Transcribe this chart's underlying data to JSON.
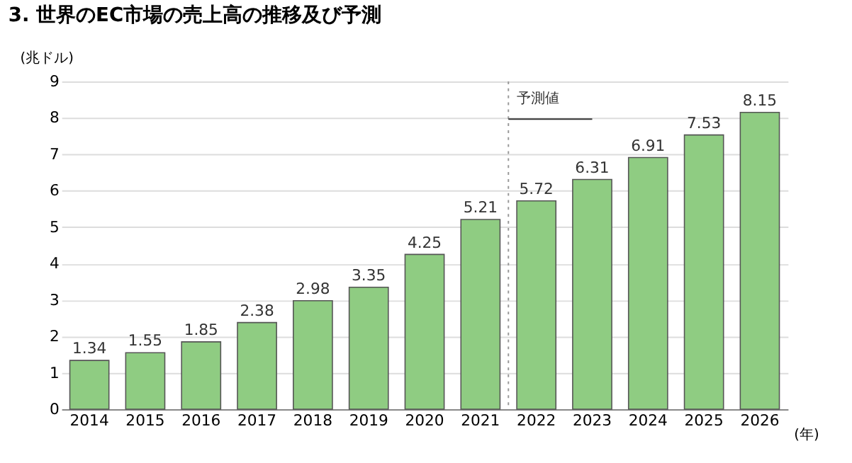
{
  "chart_data": {
    "type": "bar",
    "title": "3. 世界のEC市場の売上高の推移及び予測",
    "ylabel": "(兆ドル)",
    "xlabel": "(年)",
    "categories": [
      "2014",
      "2015",
      "2016",
      "2017",
      "2018",
      "2019",
      "2020",
      "2021",
      "2022",
      "2023",
      "2024",
      "2025",
      "2026"
    ],
    "values": [
      1.34,
      1.55,
      1.85,
      2.38,
      2.98,
      3.35,
      4.25,
      5.21,
      5.72,
      6.31,
      6.91,
      7.53,
      8.15
    ],
    "color": "#8fcc82",
    "ylim": [
      0,
      9
    ],
    "yticks": [
      0,
      1,
      2,
      3,
      4,
      5,
      6,
      7,
      8,
      9
    ],
    "grid": "y",
    "data_labels": true,
    "ref_lines": [
      {
        "axis": "x",
        "value": "2022",
        "label": "予測値",
        "line_style": "dotted",
        "color": "#999999"
      }
    ]
  }
}
